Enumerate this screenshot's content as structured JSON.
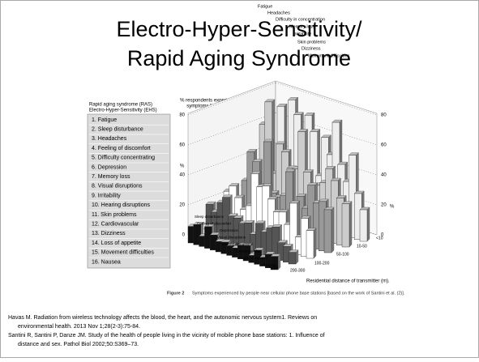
{
  "slide": {
    "title": [
      "Electro-Hyper-Sensitivity/",
      "Rapid Aging Syndrome"
    ],
    "box_header": [
      "Rapid aging syndrome (RAS)",
      "Electro-Hyper-Sensitivity (EHS)"
    ],
    "symptoms": [
      "1. Fatigue",
      "2. Sleep disturbance",
      "3. Headaches",
      "4. Feeling of discomfort",
      "5. Difficulty concentrating",
      "6. Depression",
      "7. Memory loss",
      "8. Visual disruptions",
      "9. Irritability",
      "10. Hearing disruptions",
      "11. Skin problems",
      "12. Cardiovascular",
      "13. Dizziness",
      "14. Loss of appetite",
      "15. Movement difficulties",
      "16. Nausea"
    ],
    "figure": {
      "y_title": [
        "% respondents experiencing",
        "symptoms \"very often\""
      ],
      "y_unit": "%",
      "left_ticks": [
        "0",
        "20",
        "40",
        "60",
        "80"
      ],
      "right_ticks": [
        "0",
        "20",
        "40",
        "60",
        "80"
      ],
      "back_labels": [
        "Fatigue",
        "Headaches",
        "Difficulty in concentration",
        "Memory loss",
        "Irritability",
        "Skin problems",
        "Dizziness",
        "Movement difficulties"
      ],
      "side_labels": [
        "Sleep disturbance",
        "Feeling of discomfort",
        "Depression",
        "Visual disruptions",
        "Hearing disruptions",
        "Cardiovascular",
        "Loss of appetite",
        "Nauses"
      ],
      "distances": [
        ">300",
        "200-300",
        "100-200",
        "50-100",
        "10-50",
        "<10"
      ],
      "x_title": "Residential distance of transmitter (m).",
      "caption_label": "Figure 2",
      "caption": "Symptoms experienced by people near cellular phone base stations [based on the work of Santini et al. (2)]."
    },
    "references": [
      "Havas M. Radiation from wireless technology affects the blood, the heart, and the autonomic nervous system1. Reviews on",
      "environmental health. 2013 Nov 1;28(2-3):75-84.",
      "Santini R, Santini P, Danze JM. Study of the health of people living in the vicinity of mobile phone base stations: 1. Influence of",
      "distance and sex. Pathol Biol 2002;50:S369–73."
    ]
  }
}
